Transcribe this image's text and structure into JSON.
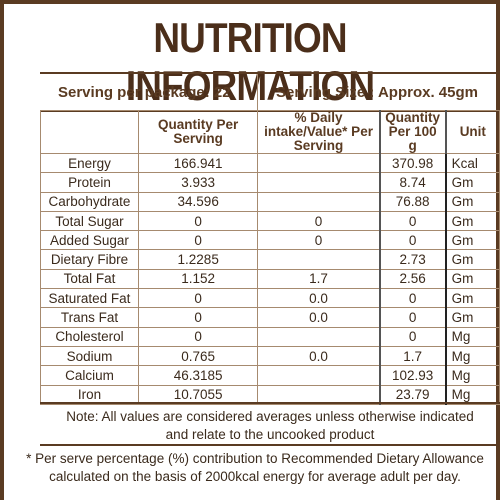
{
  "title": "NUTRITION INFORMATION",
  "serving_per_package": "Serving per package: 22",
  "serving_size": "Serving Size : Approx. 45gm",
  "headers": {
    "quantity_per_serving": "Quantity Per Serving",
    "daily_intake": "% Daily intake/Value* Per Serving",
    "quantity_per_100g": "Quantity Per 100 g",
    "unit": "Unit"
  },
  "rows": [
    {
      "name": "Energy",
      "per_serving": "166.941",
      "daily": "",
      "per_100g": "370.98",
      "unit": "Kcal"
    },
    {
      "name": "Protein",
      "per_serving": "3.933",
      "daily": "",
      "per_100g": "8.74",
      "unit": "Gm"
    },
    {
      "name": "Carbohydrate",
      "per_serving": "34.596",
      "daily": "",
      "per_100g": "76.88",
      "unit": "Gm"
    },
    {
      "name": "Total Sugar",
      "per_serving": "0",
      "daily": "0",
      "per_100g": "0",
      "unit": "Gm"
    },
    {
      "name": "Added Sugar",
      "per_serving": "0",
      "daily": "0",
      "per_100g": "0",
      "unit": "Gm"
    },
    {
      "name": "Dietary Fibre",
      "per_serving": "1.2285",
      "daily": "",
      "per_100g": "2.73",
      "unit": "Gm"
    },
    {
      "name": "Total Fat",
      "per_serving": "1.152",
      "daily": "1.7",
      "per_100g": "2.56",
      "unit": "Gm"
    },
    {
      "name": "Saturated Fat",
      "per_serving": "0",
      "daily": "0.0",
      "per_100g": "0",
      "unit": "Gm"
    },
    {
      "name": "Trans Fat",
      "per_serving": "0",
      "daily": "0.0",
      "per_100g": "0",
      "unit": "Gm"
    },
    {
      "name": "Cholesterol",
      "per_serving": "0",
      "daily": "",
      "per_100g": "0",
      "unit": "Mg"
    },
    {
      "name": "Sodium",
      "per_serving": "0.765",
      "daily": "0.0",
      "per_100g": "1.7",
      "unit": "Mg"
    },
    {
      "name": "Calcium",
      "per_serving": "46.3185",
      "daily": "",
      "per_100g": "102.93",
      "unit": "Mg"
    },
    {
      "name": "Iron",
      "per_serving": "10.7055",
      "daily": "",
      "per_100g": "23.79",
      "unit": "Mg"
    }
  ],
  "note_line1": "Note: All values are considered averages unless otherwise indicated",
  "note_line2": "and relate to the uncooked product",
  "footnote_line1": "* Per serve percentage (%) contribution to Recommended Dietary Allowance",
  "footnote_line2": "calculated on the basis of 2000kcal energy for average adult per day."
}
